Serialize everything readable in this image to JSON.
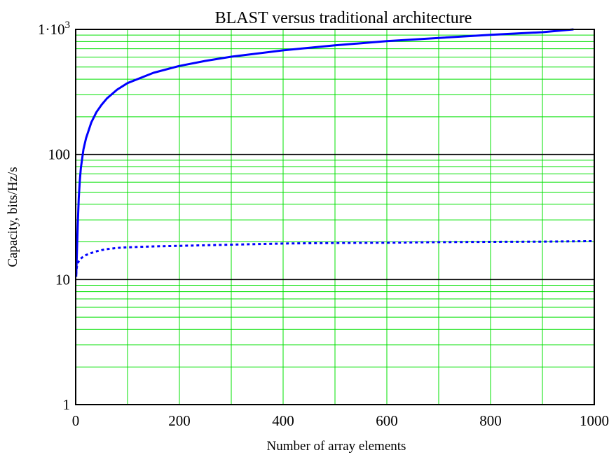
{
  "chart_data": {
    "type": "line",
    "title": "BLAST versus traditional architecture",
    "xlabel": "Number of array elements",
    "ylabel": "Capacity, bits/Hz/s",
    "xlim": [
      0,
      1000
    ],
    "ylim": [
      1,
      1000
    ],
    "y_scale": "log",
    "grid": true,
    "legend": "none",
    "x_ticks": [
      "0",
      "200",
      "400",
      "600",
      "800",
      "1000"
    ],
    "y_ticks": [
      {
        "value": 1,
        "label": "1"
      },
      {
        "value": 10,
        "label": "10"
      },
      {
        "value": 100,
        "label": "100"
      },
      {
        "value": 1000,
        "label": "1·10",
        "exponent": "3"
      }
    ],
    "series": [
      {
        "style": "solid",
        "color": "#0000ff",
        "x": [
          1,
          2,
          4,
          6,
          8,
          10,
          15,
          20,
          30,
          40,
          50,
          60,
          80,
          100,
          150,
          200,
          250,
          300,
          400,
          500,
          600,
          700,
          800,
          900,
          960
        ],
        "y": [
          10.5,
          15,
          28,
          45,
          62,
          78,
          110,
          135,
          180,
          218,
          250,
          280,
          330,
          372,
          450,
          510,
          560,
          605,
          680,
          745,
          805,
          855,
          905,
          950,
          1000
        ]
      },
      {
        "style": "dotted",
        "color": "#0000ff",
        "x": [
          1,
          2,
          4,
          6,
          10,
          15,
          20,
          30,
          40,
          50,
          60,
          80,
          100,
          150,
          200,
          300,
          400,
          500,
          600,
          700,
          800,
          900,
          1000
        ],
        "y": [
          11,
          12.5,
          13.5,
          14.0,
          14.7,
          15.3,
          15.7,
          16.3,
          16.8,
          17.2,
          17.5,
          17.9,
          18.1,
          18.4,
          18.6,
          19.0,
          19.4,
          19.6,
          19.7,
          19.9,
          20.0,
          20.1,
          20.3
        ]
      }
    ],
    "colors": {
      "grid_minor": "#00e000",
      "grid_major": "#000000",
      "frame": "#000000",
      "series": "#0000ff"
    }
  }
}
